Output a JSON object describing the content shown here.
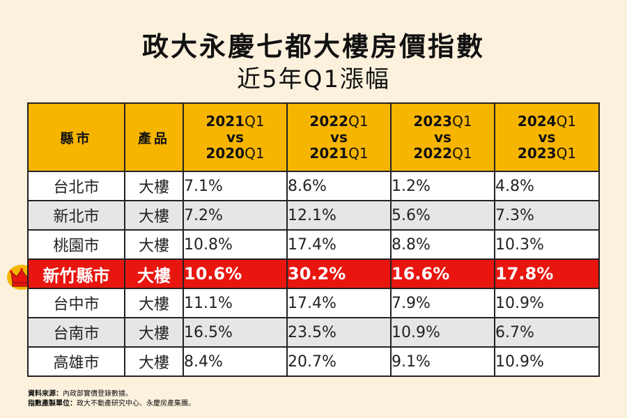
{
  "title": "政大永慶七都大樓房價指數",
  "subtitle": "近5年Q1漲幅",
  "table": {
    "headers": {
      "city": "縣市",
      "product": "產品",
      "periods": [
        {
          "a_year": "2021",
          "a_q": "Q1",
          "vs": "vs",
          "b_year": "2020",
          "b_q": "Q1"
        },
        {
          "a_year": "2022",
          "a_q": "Q1",
          "vs": "vs",
          "b_year": "2021",
          "b_q": "Q1"
        },
        {
          "a_year": "2023",
          "a_q": "Q1",
          "vs": "vs",
          "b_year": "2022",
          "b_q": "Q1"
        },
        {
          "a_year": "2024",
          "a_q": "Q1",
          "vs": "vs",
          "b_year": "2023",
          "b_q": "Q1"
        }
      ]
    },
    "rows": [
      {
        "city": "台北市",
        "product": "大樓",
        "values": [
          "7.1%",
          "8.6%",
          "1.2%",
          "4.8%"
        ],
        "highlight": false
      },
      {
        "city": "新北市",
        "product": "大樓",
        "values": [
          "7.2%",
          "12.1%",
          "5.6%",
          "7.3%"
        ],
        "highlight": false
      },
      {
        "city": "桃園市",
        "product": "大樓",
        "values": [
          "10.8%",
          "17.4%",
          "8.8%",
          "10.3%"
        ],
        "highlight": false
      },
      {
        "city": "新竹縣市",
        "product": "大樓",
        "values": [
          "10.6%",
          "30.2%",
          "16.6%",
          "17.8%"
        ],
        "highlight": true
      },
      {
        "city": "台中市",
        "product": "大樓",
        "values": [
          "11.1%",
          "17.4%",
          "7.9%",
          "10.9%"
        ],
        "highlight": false
      },
      {
        "city": "台南市",
        "product": "大樓",
        "values": [
          "16.5%",
          "23.5%",
          "10.9%",
          "6.7%"
        ],
        "highlight": false
      },
      {
        "city": "高雄市",
        "product": "大樓",
        "values": [
          "8.4%",
          "20.7%",
          "9.1%",
          "10.9%"
        ],
        "highlight": false
      }
    ]
  },
  "highlight_icon": "crown-icon",
  "footer": {
    "source_label": "資料來源：",
    "source_text": "內政部實價登錄數據。",
    "producer_label": "指數產製單位：",
    "producer_text": "政大不動產研究中心、永慶房產集團。"
  },
  "colors": {
    "background": "#fbf1dd",
    "header": "#f7b500",
    "highlight_row": "#e8160f",
    "stripe": "#e6e6e6",
    "crown": "#f7b500"
  }
}
